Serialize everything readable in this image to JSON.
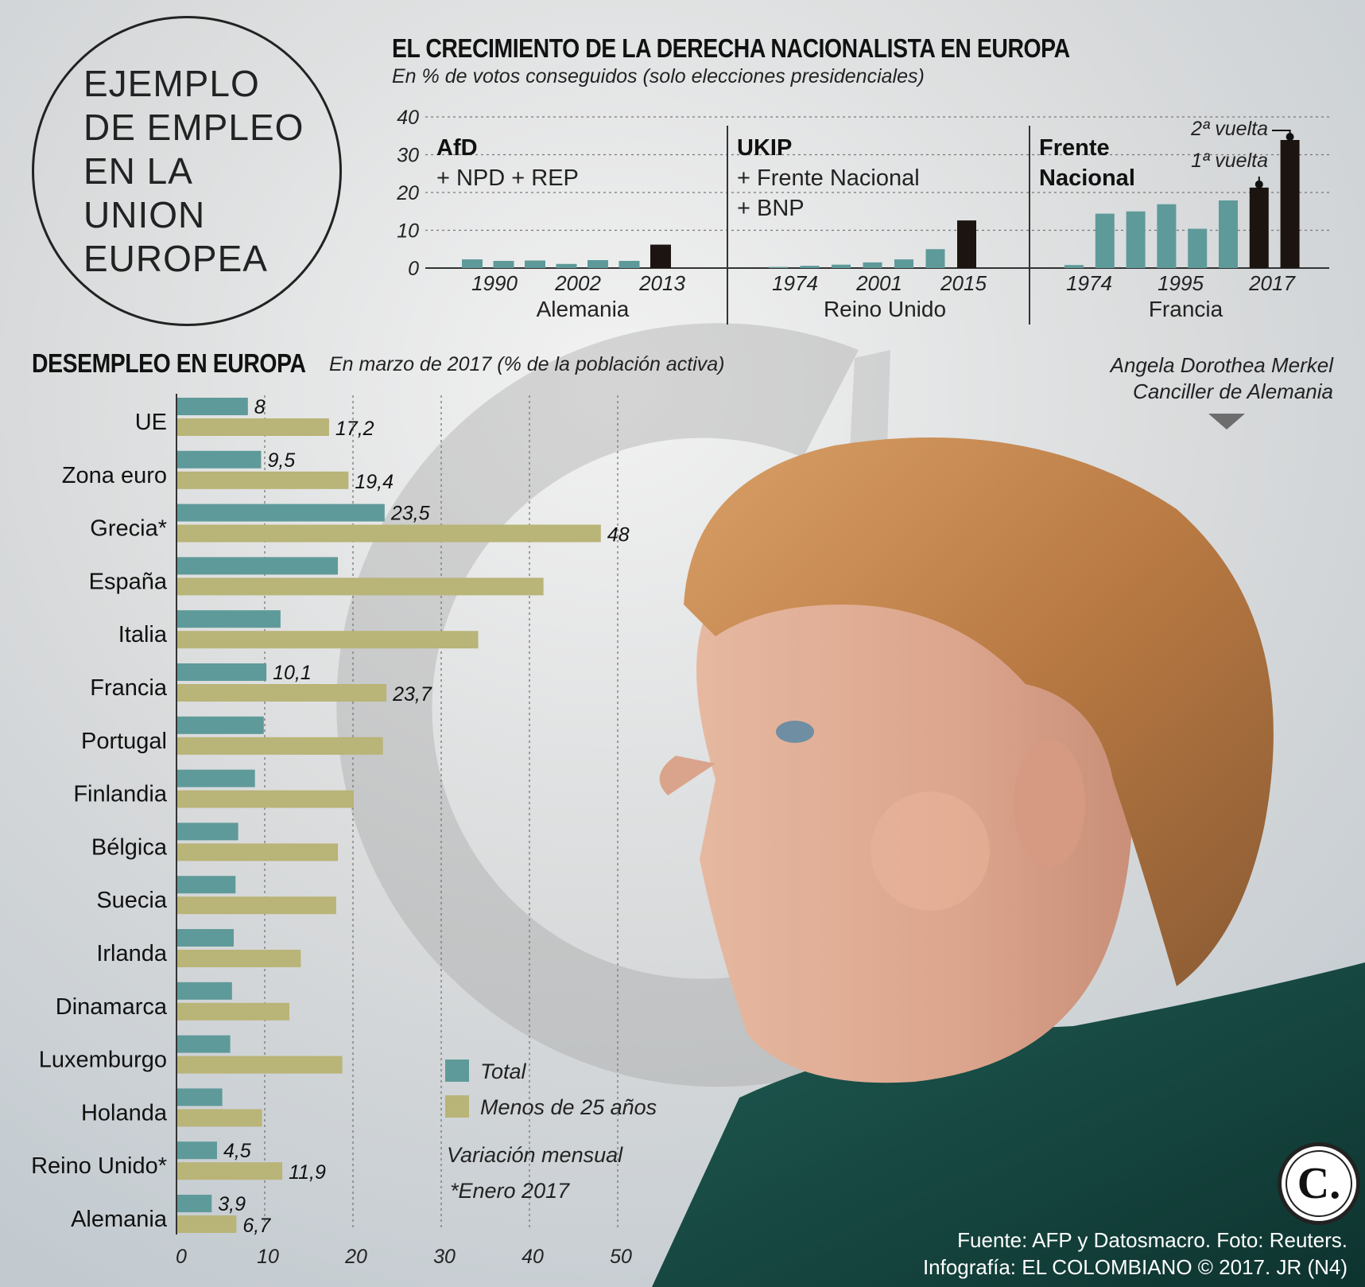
{
  "header": {
    "circle_title": "EJEMPLO DE EMPLEO EN LA UNION EUROPEA"
  },
  "chart_data": [
    {
      "type": "bar",
      "title": "EL CRECIMIENTO DE LA DERECHA NACIONALISTA EN EUROPA",
      "subtitle": "En % de votos conseguidos (solo elecciones presidenciales)",
      "ylim": [
        0,
        40
      ],
      "yticks": [
        0,
        10,
        20,
        30,
        40
      ],
      "panels": [
        {
          "country": "Alemania",
          "party": "AfD",
          "party_extra": [
            "+ NPD + REP"
          ],
          "year_labels": [
            "1990",
            "2002",
            "2013"
          ],
          "values": [
            2.3,
            1.9,
            2.0,
            1.1,
            2.1,
            1.9,
            6.2
          ],
          "highlight": [
            false,
            false,
            false,
            false,
            false,
            false,
            true
          ]
        },
        {
          "country": "Reino Unido",
          "party": "UKIP",
          "party_extra": [
            "+ Frente Nacional",
            "+ BNP"
          ],
          "year_labels": [
            "1974",
            "2001",
            "2015"
          ],
          "values": [
            0.3,
            0.6,
            0.9,
            1.5,
            2.3,
            5.0,
            12.6
          ],
          "highlight": [
            false,
            false,
            false,
            false,
            false,
            false,
            true
          ]
        },
        {
          "country": "Francia",
          "party": "Frente Nacional",
          "year_labels": [
            "1974",
            "1995",
            "2017"
          ],
          "values": [
            0.8,
            14.4,
            15.0,
            16.9,
            10.4,
            17.9,
            21.3,
            33.9
          ],
          "highlight": [
            false,
            false,
            false,
            false,
            false,
            false,
            true,
            true
          ],
          "annotations": [
            "2ª vuelta",
            "1ª vuelta"
          ]
        }
      ]
    },
    {
      "type": "bar",
      "orientation": "horizontal",
      "title": "DESEMPLEO EN EUROPA",
      "subtitle": "En marzo de 2017 (% de la población activa)",
      "categories": [
        "UE",
        "Zona euro",
        "Grecia*",
        "España",
        "Italia",
        "Francia",
        "Portugal",
        "Finlandia",
        "Bélgica",
        "Suecia",
        "Irlanda",
        "Dinamarca",
        "Luxemburgo",
        "Holanda",
        "Reino Unido*",
        "Alemania"
      ],
      "series": [
        {
          "name": "Total",
          "color": "#5f9a9a",
          "values": [
            8,
            9.5,
            23.5,
            18.2,
            11.7,
            10.1,
            9.8,
            8.8,
            6.9,
            6.6,
            6.4,
            6.2,
            6,
            5.1,
            4.5,
            3.9
          ],
          "labels": [
            "8",
            "9,5",
            "23,5",
            "",
            "",
            "10,1",
            "",
            "",
            "",
            "",
            "",
            "",
            "",
            "",
            "4,5",
            "3,9"
          ]
        },
        {
          "name": "Menos de 25 años",
          "color": "#b9b477",
          "values": [
            17.2,
            19.4,
            48,
            41.5,
            34.1,
            23.7,
            23.3,
            20,
            18.2,
            18,
            14,
            12.7,
            18.7,
            9.6,
            11.9,
            6.7
          ],
          "labels": [
            "17,2",
            "19,4",
            "48",
            "",
            "",
            "23,7",
            "",
            "",
            "",
            "",
            "",
            "",
            "",
            "",
            "11,9",
            "6,7"
          ]
        }
      ],
      "xlim": [
        0,
        50
      ],
      "xticks": [
        0,
        10,
        20,
        30,
        40,
        50
      ],
      "notes": [
        "Variación mensual",
        "*Enero 2017"
      ]
    }
  ],
  "photo": {
    "caption_line1": "Angela Dorothea Merkel",
    "caption_line2": "Canciller de Alemania"
  },
  "credits": {
    "line1": "Fuente: AFP y Datosmacro. Foto: Reuters.",
    "line2": "Infografía: EL COLOMBIANO © 2017. JR (N4)"
  },
  "brand": {
    "letter": "C."
  },
  "colors": {
    "teal": "#5f9a9a",
    "olive": "#b9b477",
    "highlight": "#1c1410",
    "credits_text": "#ffffff"
  }
}
